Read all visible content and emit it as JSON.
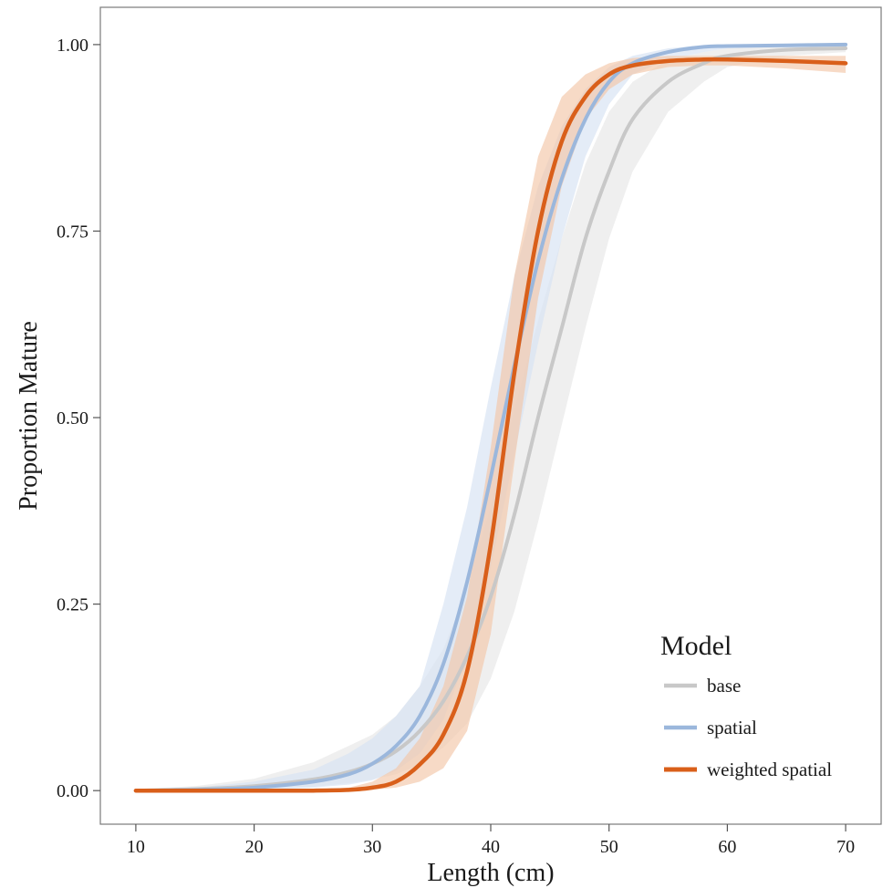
{
  "chart_data": {
    "type": "line",
    "xlabel": "Length (cm)",
    "ylabel": "Proportion Mature",
    "xlim": [
      7,
      73
    ],
    "ylim": [
      -0.045,
      1.05
    ],
    "x_ticks": [
      10,
      20,
      30,
      40,
      50,
      60,
      70
    ],
    "x_tick_labels": [
      "10",
      "20",
      "30",
      "40",
      "50",
      "60",
      "70"
    ],
    "y_ticks": [
      0,
      0.25,
      0.5,
      0.75,
      1.0
    ],
    "y_tick_labels": [
      "0.00",
      "0.25",
      "0.50",
      "0.75",
      "1.00"
    ],
    "grid": false,
    "legend": {
      "title": "Model",
      "position": "bottom-right"
    },
    "x": [
      10,
      15,
      20,
      25,
      28,
      30,
      32,
      34,
      36,
      38,
      40,
      42,
      44,
      46,
      48,
      50,
      52,
      55,
      58,
      60,
      65,
      70
    ],
    "series": [
      {
        "name": "base",
        "color": "#c8c8c8",
        "band_color": "#e6e6e6",
        "values": [
          0.0,
          0.002,
          0.006,
          0.015,
          0.025,
          0.036,
          0.053,
          0.08,
          0.12,
          0.18,
          0.26,
          0.37,
          0.5,
          0.62,
          0.74,
          0.83,
          0.9,
          0.95,
          0.975,
          0.985,
          0.993,
          0.995
        ],
        "lower": [
          0.0,
          0.0,
          0.002,
          0.005,
          0.01,
          0.015,
          0.022,
          0.035,
          0.058,
          0.09,
          0.15,
          0.24,
          0.36,
          0.49,
          0.62,
          0.74,
          0.83,
          0.91,
          0.95,
          0.97,
          0.985,
          0.99
        ],
        "upper": [
          0.002,
          0.006,
          0.016,
          0.038,
          0.06,
          0.075,
          0.1,
          0.14,
          0.19,
          0.27,
          0.38,
          0.51,
          0.63,
          0.74,
          0.84,
          0.91,
          0.95,
          0.98,
          0.99,
          0.995,
          0.998,
          1.0
        ]
      },
      {
        "name": "spatial",
        "color": "#9bb7dc",
        "band_color": "#d6e2f3",
        "values": [
          0.0,
          0.001,
          0.004,
          0.012,
          0.022,
          0.036,
          0.06,
          0.1,
          0.17,
          0.28,
          0.42,
          0.57,
          0.71,
          0.82,
          0.9,
          0.95,
          0.975,
          0.99,
          0.997,
          0.998,
          0.999,
          1.0
        ],
        "lower": [
          0.0,
          0.0,
          0.001,
          0.004,
          0.008,
          0.014,
          0.027,
          0.05,
          0.095,
          0.18,
          0.3,
          0.45,
          0.6,
          0.74,
          0.85,
          0.92,
          0.96,
          0.98,
          0.99,
          0.995,
          0.997,
          0.998
        ],
        "upper": [
          0.002,
          0.004,
          0.012,
          0.028,
          0.05,
          0.07,
          0.1,
          0.14,
          0.25,
          0.38,
          0.54,
          0.69,
          0.81,
          0.89,
          0.94,
          0.97,
          0.985,
          0.995,
          0.999,
          1.0,
          1.0,
          1.0
        ]
      },
      {
        "name": "weighted spatial",
        "color": "#d95f1a",
        "band_color": "#f3c6a8",
        "values": [
          0.0,
          0.0,
          0.0,
          0.0,
          0.001,
          0.004,
          0.012,
          0.035,
          0.075,
          0.16,
          0.33,
          0.56,
          0.75,
          0.87,
          0.93,
          0.96,
          0.972,
          0.978,
          0.98,
          0.98,
          0.978,
          0.975
        ],
        "lower": [
          0.0,
          0.0,
          0.0,
          0.0,
          0.0,
          0.001,
          0.004,
          0.012,
          0.03,
          0.08,
          0.21,
          0.44,
          0.66,
          0.81,
          0.9,
          0.94,
          0.96,
          0.97,
          0.972,
          0.972,
          0.968,
          0.962
        ],
        "upper": [
          0.0,
          0.0,
          0.0,
          0.001,
          0.004,
          0.012,
          0.03,
          0.07,
          0.14,
          0.26,
          0.46,
          0.69,
          0.85,
          0.93,
          0.96,
          0.975,
          0.982,
          0.985,
          0.985,
          0.985,
          0.985,
          0.985
        ]
      }
    ]
  }
}
